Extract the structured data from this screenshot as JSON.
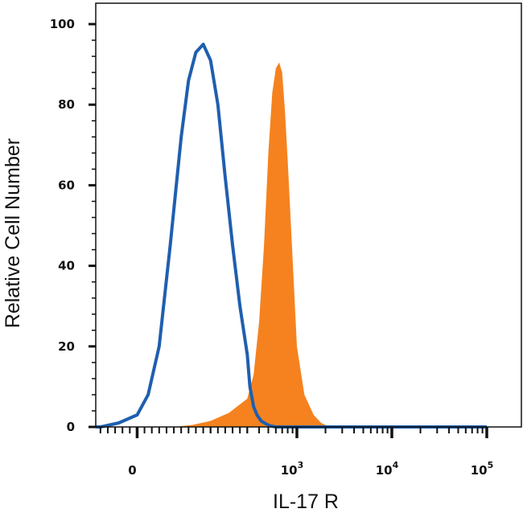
{
  "chart_data": {
    "type": "area",
    "xlabel": "IL-17 R",
    "ylabel": "Relative Cell Number",
    "ylim": [
      0,
      100
    ],
    "x_scale": "biexponential",
    "grid": false,
    "y_ticks": [
      "0",
      "20",
      "40",
      "60",
      "80",
      "100"
    ],
    "x_ticks": [
      {
        "base": "0",
        "exp": ""
      },
      {
        "base": "10",
        "exp": "3"
      },
      {
        "base": "10",
        "exp": "4"
      },
      {
        "base": "10",
        "exp": "5"
      }
    ],
    "series": [
      {
        "style": "filled",
        "color": "#F5821F",
        "x": [
          0,
          50,
          100,
          150,
          200,
          250,
          300,
          350,
          400,
          450,
          500,
          550,
          600,
          650,
          700,
          750,
          800,
          900,
          1000,
          1200,
          1500,
          1800,
          2200,
          3000
        ],
        "y": [
          0,
          0,
          0,
          0.5,
          1.5,
          3.5,
          7,
          13,
          26,
          45,
          68,
          83,
          89,
          90.5,
          88,
          78,
          66,
          42,
          20,
          8,
          3,
          1,
          0,
          0
        ]
      },
      {
        "style": "outline",
        "color": "#1F5FAF",
        "x": [
          -200,
          -100,
          -50,
          0,
          30,
          60,
          90,
          120,
          140,
          160,
          180,
          200,
          220,
          240,
          260,
          280,
          300,
          320,
          350,
          380,
          420,
          470,
          520,
          600,
          800,
          1500,
          100000
        ],
        "y": [
          0,
          0,
          1,
          3,
          8,
          20,
          45,
          72,
          86,
          93,
          95,
          91,
          80,
          62,
          45,
          30,
          18,
          10,
          5,
          3,
          1.5,
          0.8,
          0.3,
          0,
          0,
          0,
          0
        ]
      }
    ]
  }
}
